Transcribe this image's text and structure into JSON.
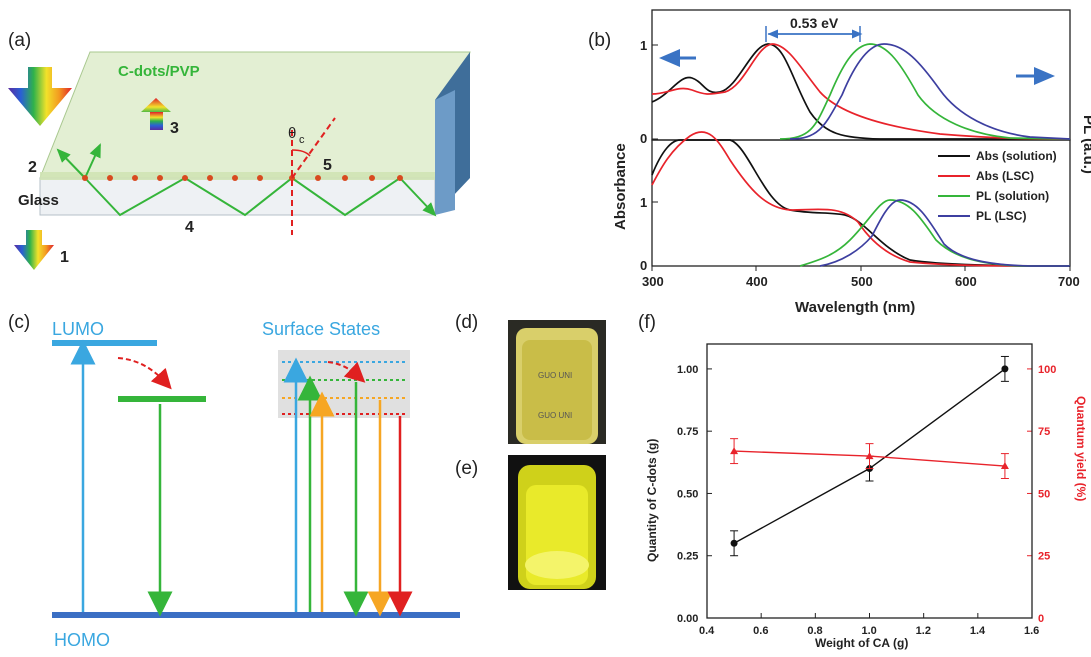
{
  "panels": {
    "a": {
      "label": "(a)",
      "film_label": "C-dots/PVP",
      "glass_label": "Glass",
      "solar_label": "Solar Cell",
      "angle_label": "θ",
      "angle_sub": "c",
      "paths": [
        "1",
        "2",
        "3",
        "4",
        "5"
      ]
    },
    "b": {
      "label": "(b)",
      "delta_label": "0.53 eV",
      "ylabel_left": "Absorbance",
      "ylabel_right": "PL (a.u.)",
      "xlabel": "Wavelength (nm)",
      "top_yticks": [
        "1",
        "0"
      ],
      "bottom_yticks": [
        "1",
        "0"
      ],
      "xticks": [
        "300",
        "400",
        "500",
        "600",
        "700"
      ],
      "legend": [
        "Abs (solution)",
        "Abs (LSC)",
        "PL (solution)",
        "PL (LSC)"
      ]
    },
    "c": {
      "label": "(c)",
      "lumo": "LUMO",
      "homo": "HOMO",
      "surface": "Surface States"
    },
    "d": {
      "label": "(d)"
    },
    "e": {
      "label": "(e)"
    },
    "f": {
      "label": "(f)",
      "ylabel_left": "Quantity of C-dots (g)",
      "ylabel_right": "Quantum yield (%)",
      "xlabel": "Weight of CA (g)",
      "xticks": [
        "0.4",
        "0.6",
        "0.8",
        "1.0",
        "1.2",
        "1.4",
        "1.6"
      ],
      "yticks_left": [
        "0.00",
        "0.25",
        "0.50",
        "0.75",
        "1.00"
      ],
      "yticks_right": [
        "0",
        "25",
        "50",
        "75",
        "100"
      ]
    }
  },
  "colors": {
    "black": "#111111",
    "red": "#e8232b",
    "green": "#35b53a",
    "blue": "#3d3fa0",
    "cyan": "#3aa7e0",
    "homo_bar": "#3b6fc4",
    "orange": "#f6a623",
    "deepred": "#e02020"
  },
  "chart_data": {
    "type": "line",
    "x_values": [
      0.5,
      1.0,
      1.5
    ],
    "series": [
      {
        "axis": "left",
        "color": "#111111",
        "values": [
          0.3,
          0.6,
          1.0
        ],
        "errors": [
          0.05,
          0.05,
          0.05
        ]
      },
      {
        "axis": "right",
        "color": "#e8232b",
        "values": [
          67,
          65,
          61
        ],
        "errors": [
          5,
          5,
          5
        ]
      }
    ],
    "xlim": [
      0.4,
      1.6
    ],
    "ylim_left": [
      0.0,
      1.1
    ],
    "ylim_right": [
      0,
      110
    ],
    "xlabel": "Weight of CA (g)",
    "ylabel": "Quantity of C-dots (g)",
    "ylabel_right": "Quantum yield (%)"
  }
}
